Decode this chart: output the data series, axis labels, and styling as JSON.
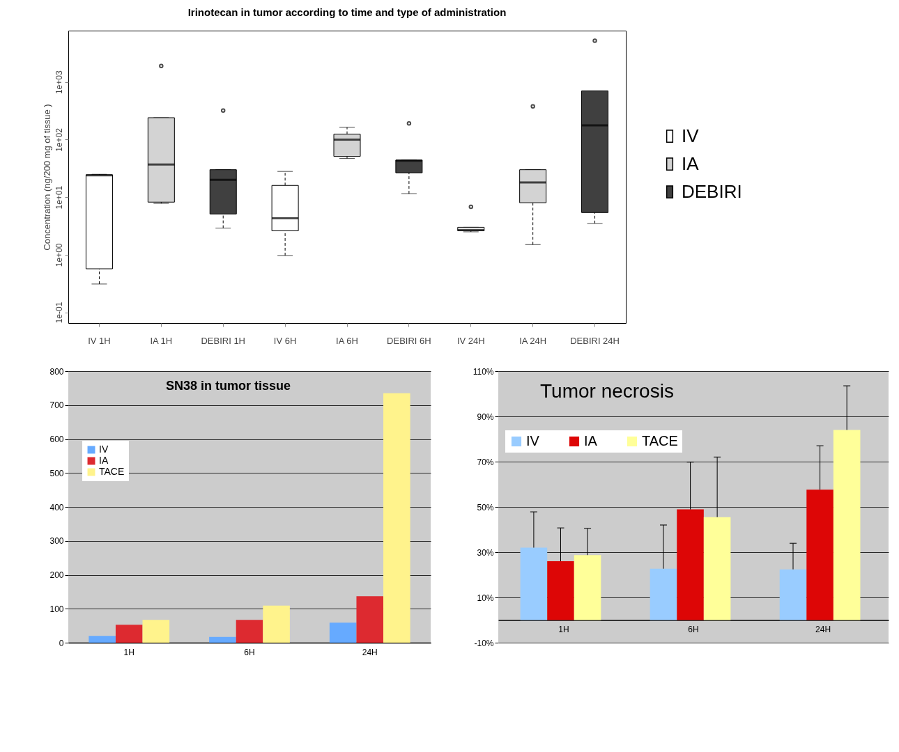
{
  "chart_data": [
    {
      "type": "box",
      "title": "Irinotecan in tumor according to time and type of administration",
      "ylabel": "Concentration (ng/200 mg of tissue )",
      "categories": [
        "IV 1H",
        "IA 1H",
        "DEBIRI 1H",
        "IV 6H",
        "IA 6H",
        "DEBIRI 6H",
        "IV 24H",
        "IA 24H",
        "DEBIRI 24H"
      ],
      "series": [
        {
          "name": "IV",
          "color": "#ffffff",
          "boxes": [
            {
              "low": 0.31,
              "q1": 0.57,
              "median": 24,
              "q3": 24.5,
              "high": 25
            },
            null,
            null,
            {
              "low": 0.97,
              "q1": 2.6,
              "median": 4.3,
              "q3": 16,
              "high": 28
            },
            null,
            null,
            {
              "low": 2.5,
              "q1": 2.6,
              "median": 2.7,
              "q3": 3.0,
              "high": 3.0,
              "outliers": [
                6.8
              ]
            },
            null,
            null
          ]
        },
        {
          "name": "IA",
          "color": "#d3d3d3",
          "boxes": [
            null,
            {
              "low": 7.8,
              "q1": 8.2,
              "median": 37,
              "q3": 240,
              "high": 240,
              "outliers": [
                1900
              ]
            },
            null,
            null,
            {
              "low": 47,
              "q1": 51,
              "median": 100,
              "q3": 124,
              "high": 163
            },
            null,
            null,
            {
              "low": 1.5,
              "q1": 8,
              "median": 18,
              "q3": 30,
              "high": 30,
              "outliers": [
                377
              ]
            },
            null
          ]
        },
        {
          "name": "DEBIRI",
          "color": "#404040",
          "boxes": [
            null,
            null,
            {
              "low": 2.9,
              "q1": 5.1,
              "median": 20,
              "q3": 30,
              "high": 30,
              "outliers": [
                320
              ]
            },
            null,
            null,
            {
              "low": 11.5,
              "q1": 26.5,
              "median": 43,
              "q3": 44,
              "high": 44,
              "outliers": [
                191
              ]
            },
            null,
            null,
            {
              "low": 3.5,
              "q1": 5.4,
              "median": 177,
              "q3": 700,
              "high": 700,
              "outliers": [
                5200
              ]
            }
          ]
        }
      ],
      "ylim": [
        0.065,
        7800
      ],
      "yticks": [
        {
          "value": 0.1,
          "label": "1e-01"
        },
        {
          "value": 1,
          "label": "1e+00"
        },
        {
          "value": 10,
          "label": "1e+01"
        },
        {
          "value": 100,
          "label": "1e+02"
        },
        {
          "value": 1000,
          "label": "1e+03"
        }
      ],
      "log": true,
      "grid": false,
      "legend": "right"
    },
    {
      "type": "bar",
      "title": "SN38 in tumor tissue",
      "categories": [
        "1H",
        "6H",
        "24H"
      ],
      "series": [
        {
          "name": "IV",
          "color": "#66aaff",
          "values": [
            20,
            17,
            59
          ]
        },
        {
          "name": "IA",
          "color": "#dd2a30",
          "values": [
            53,
            67,
            137
          ]
        },
        {
          "name": "TACE",
          "color": "#fff38c",
          "values": [
            67,
            109,
            735
          ]
        }
      ],
      "ylim": [
        0,
        800
      ],
      "yticks": [
        0,
        100,
        200,
        300,
        400,
        500,
        600,
        700,
        800
      ],
      "grid": "y",
      "legend": "top left"
    },
    {
      "type": "bar",
      "title": "Tumor necrosis",
      "categories": [
        "1H",
        "6H",
        "24H"
      ],
      "series": [
        {
          "name": "IV",
          "color": "#99ccff",
          "values": [
            32,
            22.7,
            22.4
          ],
          "errors": [
            [
              32,
              47.8
            ],
            [
              22.7,
              42
            ],
            [
              22.4,
              33.9
            ]
          ]
        },
        {
          "name": "IA",
          "color": "#dd0606",
          "values": [
            26,
            48.9,
            57.6
          ],
          "errors": [
            [
              26,
              40.7
            ],
            [
              48.9,
              69.8
            ],
            [
              57.6,
              77
            ]
          ]
        },
        {
          "name": "TACE",
          "color": "#ffff99",
          "values": [
            28.7,
            45.5,
            84
          ],
          "errors": [
            [
              28.7,
              40.5
            ],
            [
              45.5,
              72
            ],
            [
              84,
              103.5
            ]
          ]
        }
      ],
      "ylim": [
        -10,
        110
      ],
      "yticks": [
        {
          "value": -10,
          "label": "-10%"
        },
        {
          "value": 10,
          "label": "10%"
        },
        {
          "value": 30,
          "label": "30%"
        },
        {
          "value": 50,
          "label": "50%"
        },
        {
          "value": 70,
          "label": "70%"
        },
        {
          "value": 90,
          "label": "90%"
        },
        {
          "value": 110,
          "label": "110%"
        }
      ],
      "grid": "y",
      "legend": "top left"
    }
  ]
}
